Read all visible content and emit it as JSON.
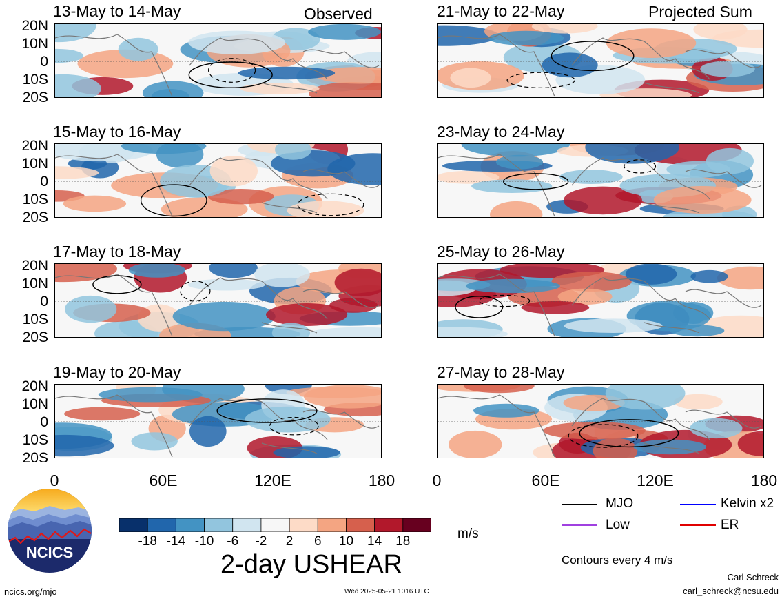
{
  "chart_data": {
    "type": "heatmap",
    "variable_title": "2-day USHEAR",
    "units": "m/s",
    "colorbar_ticks": [
      "-18",
      "-14",
      "-10",
      "-6",
      "-2",
      "2",
      "6",
      "10",
      "14",
      "18"
    ],
    "colorbar_colors": [
      "#08306b",
      "#2166ac",
      "#4393c3",
      "#92c5de",
      "#d1e5f0",
      "#f7f7f7",
      "#fddbc7",
      "#f4a582",
      "#d6604d",
      "#b2182b",
      "#67001f"
    ],
    "lat_labels": [
      "20N",
      "10N",
      "0",
      "10S",
      "20S"
    ],
    "lon_labels": [
      "0",
      "60E",
      "120E",
      "180"
    ],
    "columns": [
      {
        "tag": "Observed",
        "panels": [
          "13-May to 14-May",
          "15-May to 16-May",
          "17-May to 18-May",
          "19-May to 20-May"
        ]
      },
      {
        "tag": "Projected Sum",
        "panels": [
          "21-May to 22-May",
          "23-May to 24-May",
          "25-May to 26-May",
          "27-May to 28-May"
        ]
      }
    ],
    "legend": [
      {
        "name": "MJO",
        "color": "#000000"
      },
      {
        "name": "Kelvin x2",
        "color": "#0000ff"
      },
      {
        "name": "Low",
        "color": "#a040e0"
      },
      {
        "name": "ER",
        "color": "#e00000"
      }
    ],
    "contour_note": "Contours every 4 m/s"
  },
  "footer": {
    "logo_text": "NCICS",
    "site": "ncics.org/mjo",
    "timestamp": "Wed 2025-05-21 1016 UTC",
    "author": "Carl Schreck",
    "email": "carl_schreck@ncsu.edu"
  }
}
